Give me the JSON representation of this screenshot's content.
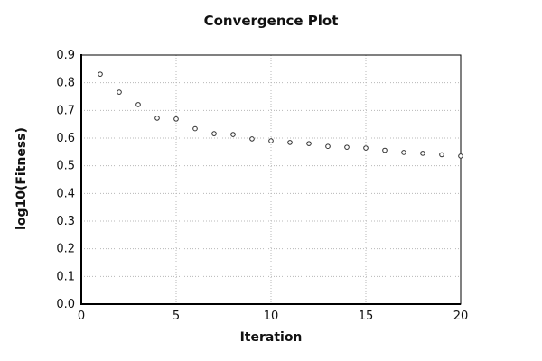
{
  "chart_data": {
    "type": "scatter",
    "title": "Convergence Plot",
    "xlabel": "Iteration",
    "ylabel": "log10(Fitness)",
    "xlim": [
      0,
      20
    ],
    "ylim": [
      0.0,
      0.9
    ],
    "grid": true,
    "legend": "none",
    "marker": "open-circle",
    "xticks": [
      0,
      5,
      10,
      15,
      20
    ],
    "xtick_labels": [
      "0",
      "5",
      "10",
      "15",
      "20"
    ],
    "yticks": [
      0.0,
      0.1,
      0.2,
      0.3,
      0.4,
      0.5,
      0.6,
      0.7,
      0.8,
      0.9
    ],
    "ytick_labels": [
      "0.0",
      "0.1",
      "0.2",
      "0.3",
      "0.4",
      "0.5",
      "0.6",
      "0.7",
      "0.8",
      "0.9"
    ],
    "x": [
      1,
      2,
      3,
      4,
      5,
      6,
      7,
      8,
      9,
      10,
      11,
      12,
      13,
      14,
      15,
      16,
      17,
      18,
      19,
      20
    ],
    "y": [
      0.831,
      0.766,
      0.721,
      0.672,
      0.669,
      0.634,
      0.616,
      0.613,
      0.597,
      0.59,
      0.584,
      0.58,
      0.57,
      0.567,
      0.564,
      0.556,
      0.548,
      0.545,
      0.54,
      0.535
    ],
    "colors": {
      "marker_stroke": "#2b2b2b",
      "marker_fill": "#ffffff",
      "grid": "#b8b8b8",
      "axis": "#000000",
      "frame": "#000000",
      "text": "#111111",
      "background": "#ffffff"
    }
  }
}
